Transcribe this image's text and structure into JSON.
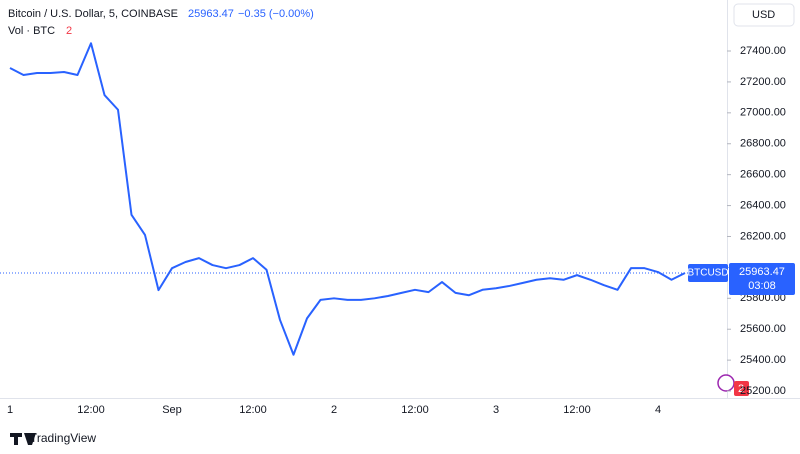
{
  "chart_data": {
    "type": "line",
    "title": "Bitcoin / U.S. Dollar, 5, COINBASE",
    "change": "−0.35 (−0.00%)",
    "volume_label": "Vol · BTC",
    "volume_badge": "2",
    "currency": "USD",
    "symbol": "BTCUSD",
    "countdown": "03:08",
    "brand": "TradingView",
    "categories": [
      "1",
      null,
      null,
      null,
      null,
      null,
      "12:00",
      null,
      null,
      null,
      null,
      null,
      "Sep",
      null,
      null,
      null,
      null,
      null,
      "12:00",
      null,
      null,
      null,
      null,
      null,
      "2",
      null,
      null,
      null,
      null,
      null,
      "12:00",
      null,
      null,
      null,
      null,
      null,
      "3",
      null,
      null,
      null,
      null,
      null,
      "12:00",
      null,
      null,
      null,
      null,
      null,
      "4",
      null,
      null
    ],
    "series": [
      {
        "name": "BTCUSD",
        "color": "#2962ff",
        "values": [
          27290,
          27245,
          27258,
          27258,
          27264,
          27245,
          27450,
          27115,
          27020,
          26340,
          26210,
          25853,
          25995,
          26035,
          26060,
          26015,
          25995,
          26015,
          26060,
          25985,
          25660,
          25435,
          25670,
          25790,
          25800,
          25790,
          25790,
          25800,
          25815,
          25835,
          25855,
          25840,
          25905,
          25835,
          25820,
          25855,
          25865,
          25880,
          25900,
          25920,
          25930,
          25920,
          25950,
          25920,
          25885,
          25855,
          25995,
          25995,
          25970,
          25920,
          25963.47
        ]
      }
    ],
    "ylim": [
      25155,
      27730
    ],
    "yticks": [
      {
        "value": 25200,
        "label": "25200.00"
      },
      {
        "value": 25400,
        "label": "25400.00"
      },
      {
        "value": 25600,
        "label": "25600.00"
      },
      {
        "value": 25800,
        "label": "25800.00"
      },
      {
        "value": 26000,
        "label": "26000.00"
      },
      {
        "value": 26200,
        "label": "26200.00"
      },
      {
        "value": 26400,
        "label": "26400.00"
      },
      {
        "value": 26600,
        "label": "26600.00"
      },
      {
        "value": 26800,
        "label": "26800.00"
      },
      {
        "value": 27000,
        "label": "27000.00"
      },
      {
        "value": 27200,
        "label": "27200.00"
      },
      {
        "value": 27400,
        "label": "27400.00"
      }
    ],
    "grid": false
  }
}
